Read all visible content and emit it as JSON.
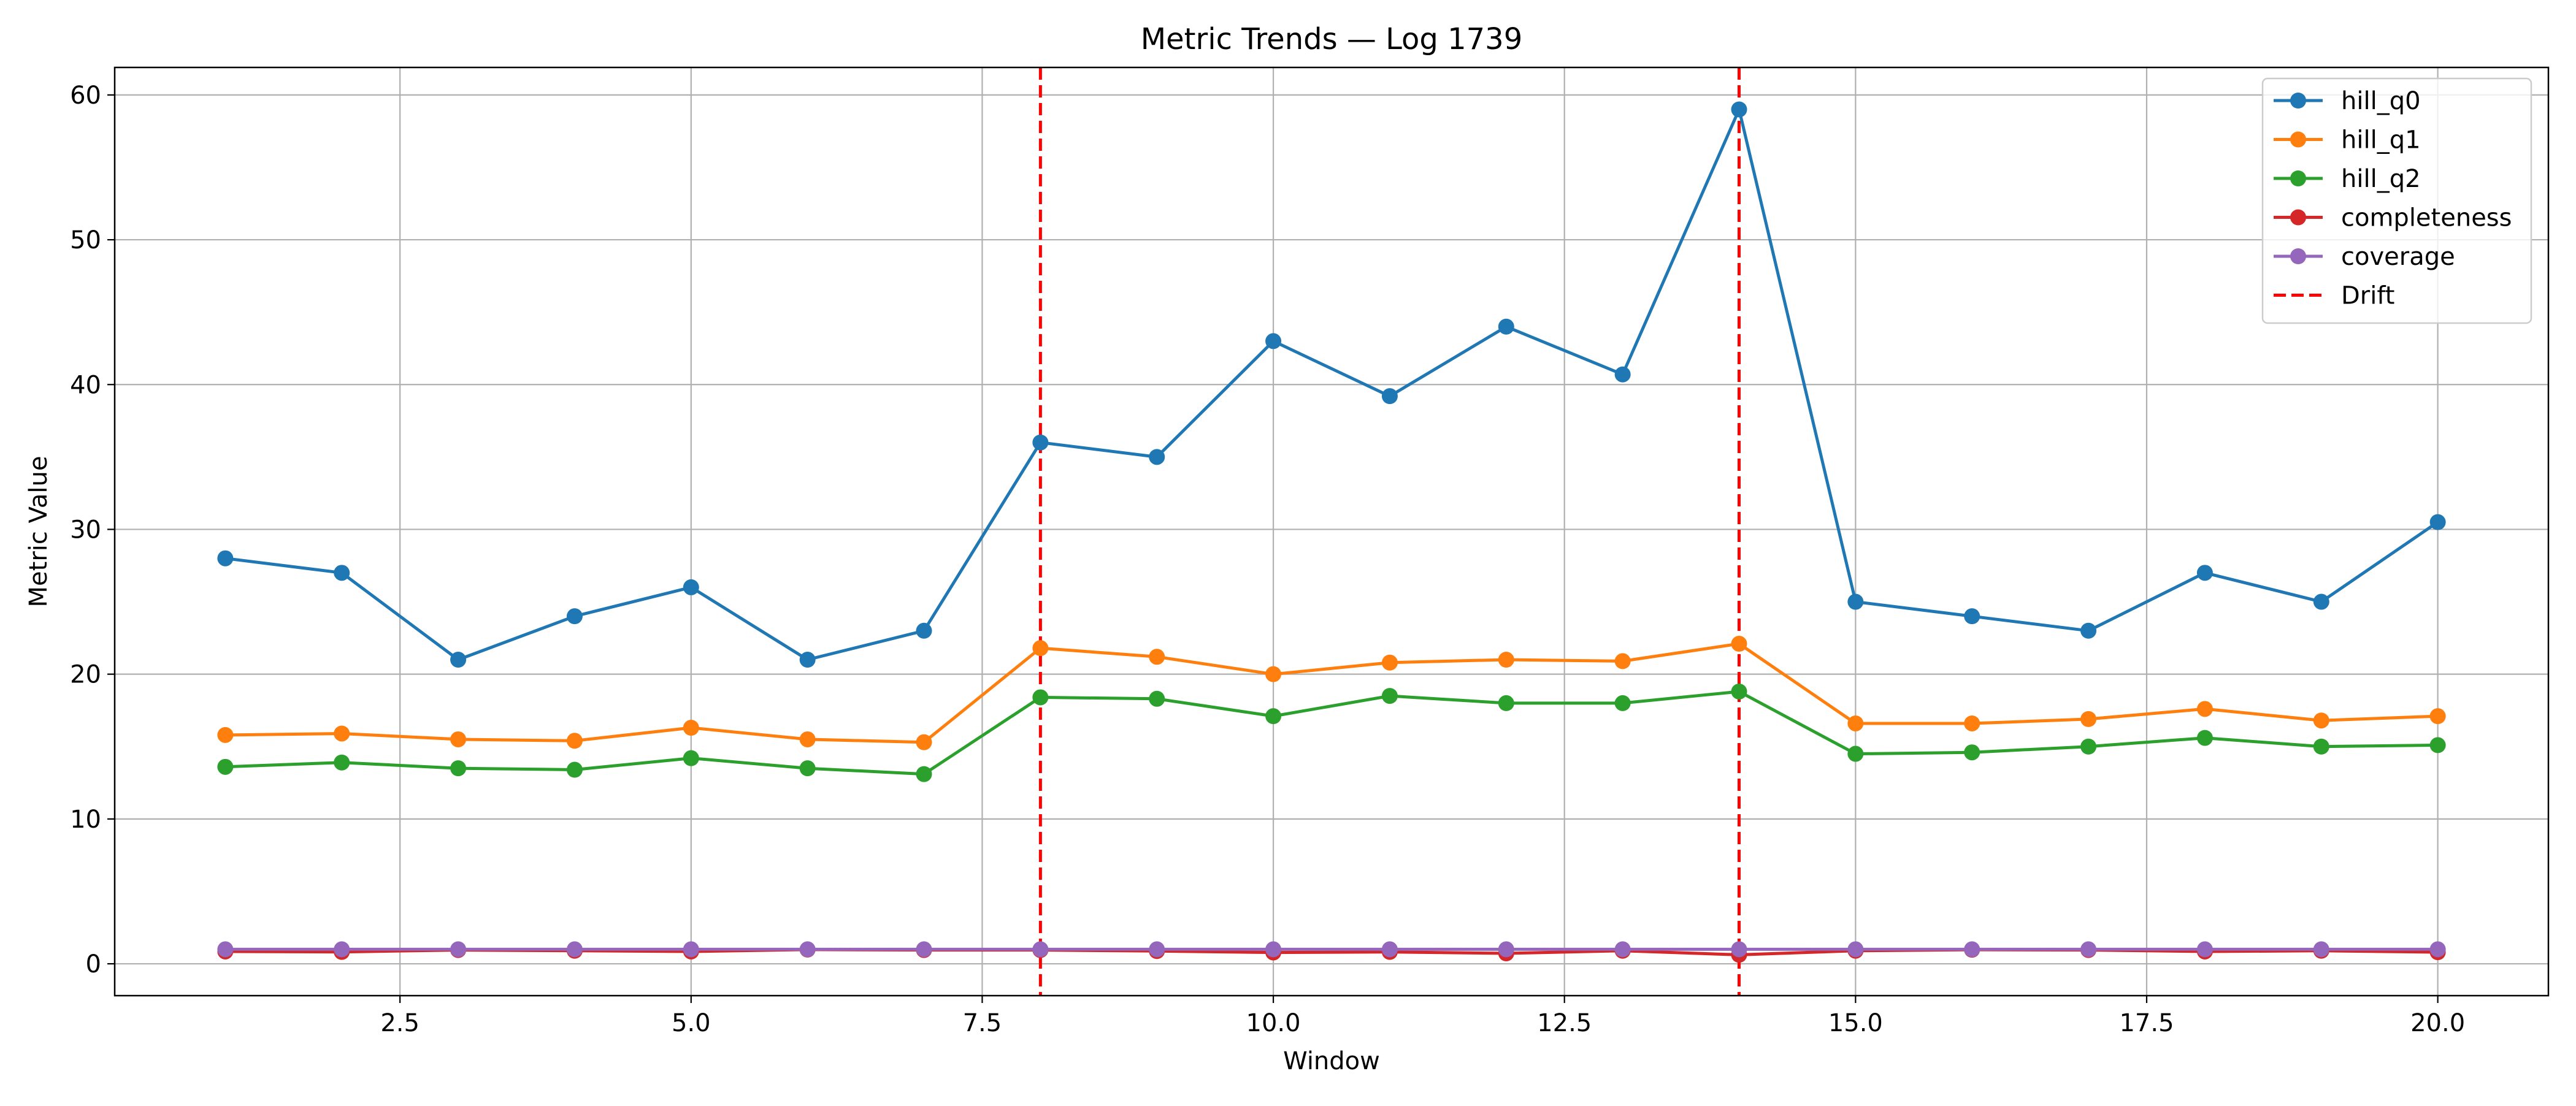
{
  "chart_data": {
    "type": "line",
    "title": "Metric Trends — Log 1739",
    "xlabel": "Window",
    "ylabel": "Metric Value",
    "x": [
      1,
      2,
      3,
      4,
      5,
      6,
      7,
      8,
      9,
      10,
      11,
      12,
      13,
      14,
      15,
      16,
      17,
      18,
      19,
      20
    ],
    "xlim": [
      0.05,
      20.95
    ],
    "ylim": [
      -2.2,
      61.9
    ],
    "xticks": [
      2.5,
      5.0,
      7.5,
      10.0,
      12.5,
      15.0,
      17.5,
      20.0
    ],
    "xtick_labels": [
      "2.5",
      "5.0",
      "7.5",
      "10.0",
      "12.5",
      "15.0",
      "17.5",
      "20.0"
    ],
    "yticks": [
      0,
      10,
      20,
      30,
      40,
      50,
      60
    ],
    "ytick_labels": [
      "0",
      "10",
      "20",
      "30",
      "40",
      "50",
      "60"
    ],
    "grid": true,
    "legend_position": "top-right",
    "series": [
      {
        "name": "hill_q0",
        "color": "#1f77b4",
        "marker": "circle",
        "values": [
          28.0,
          27.0,
          21.0,
          24.0,
          26.0,
          21.0,
          23.0,
          36.0,
          35.0,
          43.0,
          39.2,
          44.0,
          40.7,
          59.0,
          25.0,
          24.0,
          23.0,
          27.0,
          25.0,
          30.5
        ]
      },
      {
        "name": "hill_q1",
        "color": "#ff7f0e",
        "marker": "circle",
        "values": [
          15.8,
          15.9,
          15.5,
          15.4,
          16.3,
          15.5,
          15.3,
          21.8,
          21.2,
          20.0,
          20.8,
          21.0,
          20.9,
          22.1,
          16.6,
          16.6,
          16.9,
          17.6,
          16.8,
          17.1
        ]
      },
      {
        "name": "hill_q2",
        "color": "#2ca02c",
        "marker": "circle",
        "values": [
          13.6,
          13.9,
          13.5,
          13.4,
          14.2,
          13.5,
          13.1,
          18.4,
          18.3,
          17.1,
          18.5,
          18.0,
          18.0,
          18.8,
          14.5,
          14.6,
          15.0,
          15.6,
          15.0,
          15.1
        ]
      },
      {
        "name": "completeness",
        "color": "#d62728",
        "marker": "circle",
        "values": [
          0.85,
          0.82,
          0.95,
          0.9,
          0.85,
          0.98,
          0.95,
          0.95,
          0.88,
          0.78,
          0.82,
          0.72,
          0.9,
          0.62,
          0.9,
          0.97,
          0.95,
          0.85,
          0.9,
          0.8
        ]
      },
      {
        "name": "coverage",
        "color": "#9467bd",
        "marker": "circle",
        "values": [
          1.0,
          1.0,
          1.0,
          1.0,
          1.0,
          1.0,
          1.0,
          1.0,
          1.0,
          1.0,
          1.0,
          1.0,
          1.0,
          1.0,
          1.0,
          1.0,
          1.0,
          1.0,
          1.0,
          1.0
        ]
      }
    ],
    "vlines": [
      {
        "name": "Drift",
        "color": "#ff0000",
        "style": "dashed",
        "x": [
          8,
          14
        ]
      }
    ]
  }
}
